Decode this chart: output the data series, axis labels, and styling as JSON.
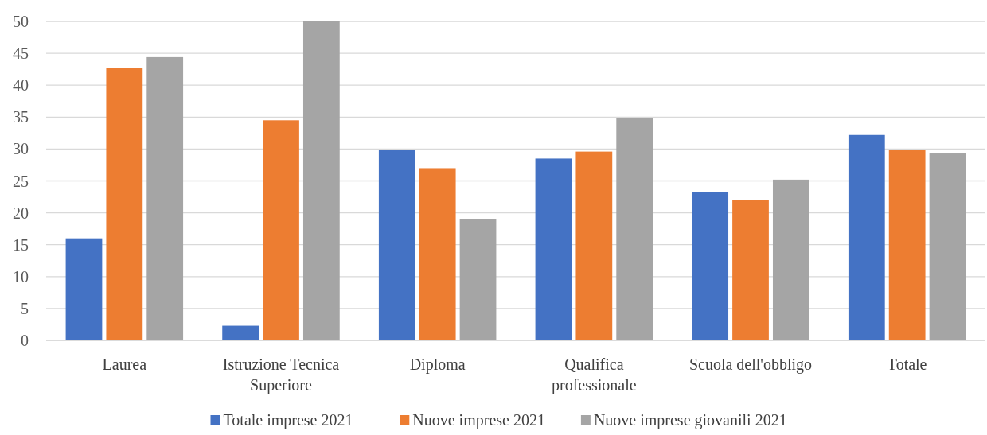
{
  "chart_data": {
    "type": "bar",
    "categories": [
      "Laurea",
      "Istruzione Tecnica Superiore",
      "Diploma",
      "Qualifica professionale",
      "Scuola dell'obbligo",
      "Totale"
    ],
    "series": [
      {
        "name": "Totale imprese 2021",
        "color": "#4472c4",
        "values": [
          16.0,
          2.3,
          29.8,
          28.5,
          23.3,
          32.2
        ]
      },
      {
        "name": "Nuove imprese 2021",
        "color": "#ed7d31",
        "values": [
          42.7,
          34.5,
          27.0,
          29.6,
          22.0,
          29.8
        ]
      },
      {
        "name": "Nuove imprese giovanili 2021",
        "color": "#a5a5a5",
        "values": [
          44.4,
          50,
          19.0,
          34.8,
          25.2,
          29.3
        ]
      }
    ],
    "ylim": [
      0,
      50
    ],
    "yticks": [
      0,
      5,
      10,
      15,
      20,
      25,
      30,
      35,
      40,
      45,
      50
    ],
    "grid": "y",
    "legend": "bottom"
  }
}
